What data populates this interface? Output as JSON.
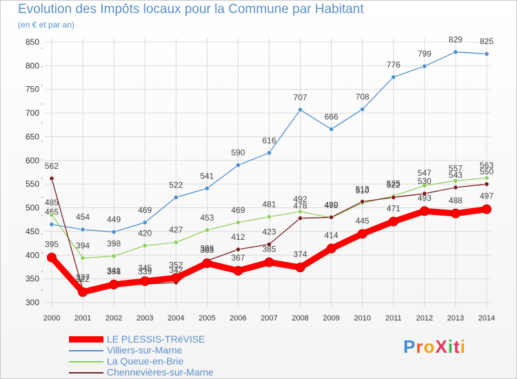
{
  "title": "Evolution des Impôts locaux pour la Commune par Habitant",
  "subtitle": "(en € et par an)",
  "brand": "ProXiti",
  "colors": {
    "title": "#5a8fc9",
    "grid": "#d9d9d9",
    "axis_text": "#333333",
    "label_text": "#444444"
  },
  "chart_data": {
    "type": "line",
    "title": "Evolution des Impôts locaux pour la Commune par Habitant",
    "subtitle": "(en € et par an)",
    "xlabel": "",
    "ylabel": "",
    "x": [
      "2000",
      "2001",
      "2002",
      "2003",
      "2004",
      "2005",
      "2006",
      "2007",
      "2008",
      "2009",
      "2010",
      "2011",
      "2012",
      "2013",
      "2014"
    ],
    "ylim": [
      300,
      850
    ],
    "yticks": [
      300,
      350,
      400,
      450,
      500,
      550,
      600,
      650,
      700,
      750,
      800,
      850
    ],
    "grid": true,
    "legend_position": "bottom-left",
    "series": [
      {
        "name": "LE PLESSIS-TRéVISE",
        "color": "#ff0000",
        "values": [
          395,
          322,
          338,
          345,
          352,
          383,
          367,
          385,
          374,
          414,
          445,
          471,
          493,
          488,
          497
        ]
      },
      {
        "name": "Villiers-sur-Marne",
        "color": "#4d8fcf",
        "values": [
          465,
          454,
          449,
          469,
          522,
          541,
          590,
          616,
          707,
          666,
          708,
          776,
          799,
          829,
          825
        ]
      },
      {
        "name": "La Queue-en-Brie",
        "color": "#8ed05b",
        "values": [
          485,
          394,
          398,
          420,
          427,
          453,
          469,
          481,
          492,
          479,
          510,
          525,
          547,
          557,
          563
        ]
      },
      {
        "name": "Chennevières-sur-Marne",
        "color": "#7a1f1f",
        "values": [
          562,
          327,
          341,
          339,
          342,
          388,
          412,
          423,
          478,
          480,
          513,
          522,
          530,
          543,
          550
        ]
      }
    ]
  }
}
